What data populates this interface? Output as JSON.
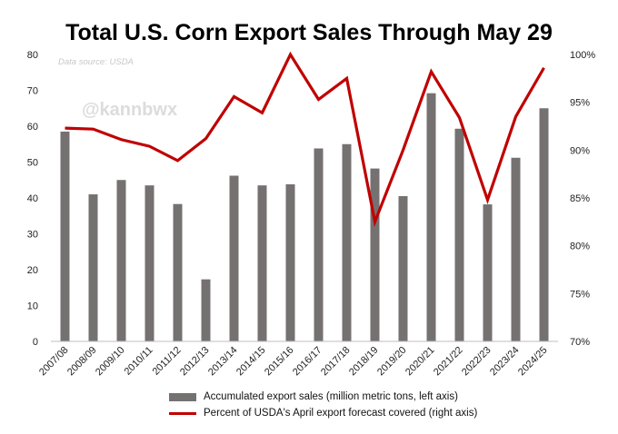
{
  "title": "Total U.S. Corn Export Sales Through May 29",
  "source_note": "Data source: USDA",
  "watermark": "@kannbwx",
  "colors": {
    "bars": "#757171",
    "line": "#c00000",
    "axis": "#bfbfbf"
  },
  "chart_data": {
    "type": "bar",
    "title": "Total U.S. Corn Export Sales Through May 29",
    "categories": [
      "2007/08",
      "2008/09",
      "2009/10",
      "2010/11",
      "2011/12",
      "2012/13",
      "2013/14",
      "2014/15",
      "2015/16",
      "2016/17",
      "2017/18",
      "2018/19",
      "2019/20",
      "2020/21",
      "2021/22",
      "2022/23",
      "2023/24",
      "2024/25"
    ],
    "series": [
      {
        "name": "Accumulated export sales (million metric tons, left axis)",
        "type": "bar",
        "axis": "left",
        "values": [
          58.5,
          41,
          45,
          43.5,
          38.3,
          17.3,
          46.2,
          43.5,
          43.8,
          53.8,
          55,
          48.2,
          40.5,
          69.2,
          59.3,
          38.2,
          51.2,
          65
        ]
      },
      {
        "name": "Percent of USDA's April export forecast covered (right axis)",
        "type": "line",
        "axis": "right",
        "values": [
          92.3,
          92.2,
          91.1,
          90.4,
          88.9,
          91.2,
          95.6,
          93.9,
          100.0,
          95.3,
          97.5,
          82.5,
          90.0,
          98.2,
          93.4,
          84.8,
          93.5,
          98.6
        ]
      }
    ],
    "left_axis": {
      "ylim": [
        0,
        80
      ],
      "ticks": [
        "0",
        "10",
        "20",
        "30",
        "40",
        "50",
        "60",
        "70",
        "80"
      ]
    },
    "right_axis": {
      "ylim": [
        70,
        100
      ],
      "ticks": [
        "70%",
        "75%",
        "80%",
        "85%",
        "90%",
        "95%",
        "100%"
      ]
    },
    "grid": false,
    "legend": "bottom"
  }
}
